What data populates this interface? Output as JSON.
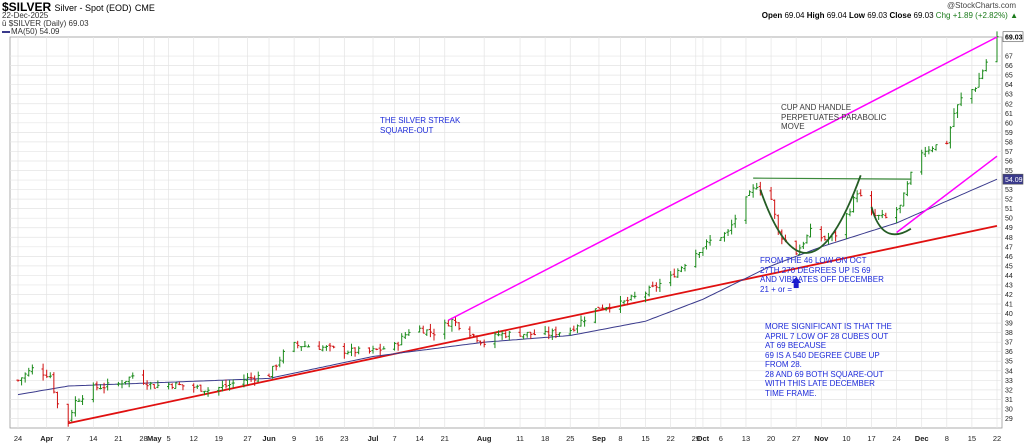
{
  "header": {
    "symbol": "$SILVER",
    "description": "Silver - Spot (EOD)",
    "exchange": "CME",
    "date": "22-Dec-2025",
    "legend_price": "$SILVER (Daily) 69.03",
    "legend_ma": "MA(50) 54.09",
    "credit": "@StockCharts.com",
    "ohlc": {
      "open_label": "Open",
      "open": "69.04",
      "high_label": "High",
      "high": "69.04",
      "low_label": "Low",
      "low": "69.03",
      "close_label": "Close",
      "close": "69.03",
      "change": "Chg +1.89 (+2.82%)",
      "change_marker": "▲"
    }
  },
  "annotations": {
    "streak": [
      "THE SILVER STREAK",
      "SQUARE-OUT"
    ],
    "cup": [
      "CUP AND HANDLE",
      "PERPETUATES PARABOLIC",
      "MOVE"
    ],
    "low": [
      "FROM THE  46 LOW ON OCT",
      "27TH 270 DEGREES UP IS 69",
      "AND VIBRATES OFF DECEMBER",
      "21 + or ="
    ],
    "significant": [
      "MORE SIGNIFICANT IS THAT THE",
      "APRIL 7 LOW OF 28 CUBES OUT",
      "AT 69 BECAUSE",
      "69 IS A 540 DEGREE CUBE UP",
      "FROM 28.",
      "28 AND 69 BOTH SQUARE-OUT",
      "WITH THIS LATE DECEMBER",
      "TIME FRAME."
    ]
  },
  "chart_data": {
    "type": "line",
    "subtype": "ohlc-bars",
    "title": "$SILVER Silver - Spot (EOD)",
    "grid": true,
    "price_axis": {
      "position": "right",
      "ylim": [
        28,
        69
      ],
      "ticks": [
        29,
        30,
        31,
        32,
        33,
        34,
        35,
        36,
        37,
        38,
        39,
        40,
        41,
        42,
        43,
        44,
        45,
        46,
        47,
        48,
        49,
        50,
        51,
        52,
        53,
        54,
        55,
        56,
        57,
        58,
        59,
        60,
        61,
        62,
        63,
        64,
        65,
        66,
        67
      ]
    },
    "date_axis": {
      "range": [
        "2025-03-24",
        "2025-12-22"
      ],
      "ticks": [
        {
          "label": "24",
          "date": "2025-03-24"
        },
        {
          "label": "Apr",
          "date": "2025-04-01",
          "month": true
        },
        {
          "label": "7",
          "date": "2025-04-07"
        },
        {
          "label": "14",
          "date": "2025-04-14"
        },
        {
          "label": "21",
          "date": "2025-04-21"
        },
        {
          "label": "28",
          "date": "2025-04-28"
        },
        {
          "label": "May",
          "date": "2025-05-01",
          "month": true
        },
        {
          "label": "5",
          "date": "2025-05-05"
        },
        {
          "label": "12",
          "date": "2025-05-12"
        },
        {
          "label": "19",
          "date": "2025-05-19"
        },
        {
          "label": "27",
          "date": "2025-05-27"
        },
        {
          "label": "Jun",
          "date": "2025-06-02",
          "month": true
        },
        {
          "label": "9",
          "date": "2025-06-09"
        },
        {
          "label": "16",
          "date": "2025-06-16"
        },
        {
          "label": "23",
          "date": "2025-06-23"
        },
        {
          "label": "Jul",
          "date": "2025-07-01",
          "month": true
        },
        {
          "label": "7",
          "date": "2025-07-07"
        },
        {
          "label": "14",
          "date": "2025-07-14"
        },
        {
          "label": "21",
          "date": "2025-07-21"
        },
        {
          "label": "Aug",
          "date": "2025-08-01",
          "month": true
        },
        {
          "label": "11",
          "date": "2025-08-11"
        },
        {
          "label": "18",
          "date": "2025-08-18"
        },
        {
          "label": "25",
          "date": "2025-08-25"
        },
        {
          "label": "Sep",
          "date": "2025-09-02",
          "month": true
        },
        {
          "label": "8",
          "date": "2025-09-08"
        },
        {
          "label": "15",
          "date": "2025-09-15"
        },
        {
          "label": "22",
          "date": "2025-09-22"
        },
        {
          "label": "29",
          "date": "2025-09-29"
        },
        {
          "label": "Oct",
          "date": "2025-10-01",
          "month": true
        },
        {
          "label": "6",
          "date": "2025-10-06"
        },
        {
          "label": "13",
          "date": "2025-10-13"
        },
        {
          "label": "20",
          "date": "2025-10-20"
        },
        {
          "label": "27",
          "date": "2025-10-27"
        },
        {
          "label": "Nov",
          "date": "2025-11-03",
          "month": true
        },
        {
          "label": "10",
          "date": "2025-11-10"
        },
        {
          "label": "17",
          "date": "2025-11-17"
        },
        {
          "label": "24",
          "date": "2025-11-24"
        },
        {
          "label": "Dec",
          "date": "2025-12-01",
          "month": true
        },
        {
          "label": "8",
          "date": "2025-12-08"
        },
        {
          "label": "15",
          "date": "2025-12-15"
        },
        {
          "label": "22",
          "date": "2025-12-22"
        }
      ]
    },
    "price_anchors": [
      [
        "2025-03-24",
        33.0
      ],
      [
        "2025-03-28",
        34.2
      ],
      [
        "2025-04-02",
        33.5
      ],
      [
        "2025-04-04",
        30.5
      ],
      [
        "2025-04-07",
        28.8
      ],
      [
        "2025-04-09",
        30.8
      ],
      [
        "2025-04-14",
        32.2
      ],
      [
        "2025-04-21",
        32.6
      ],
      [
        "2025-04-25",
        33.5
      ],
      [
        "2025-05-01",
        32.4
      ],
      [
        "2025-05-05",
        32.6
      ],
      [
        "2025-05-12",
        32.3
      ],
      [
        "2025-05-16",
        32.0
      ],
      [
        "2025-05-20",
        32.3
      ],
      [
        "2025-05-27",
        33.2
      ],
      [
        "2025-06-02",
        33.6
      ],
      [
        "2025-06-06",
        35.8
      ],
      [
        "2025-06-09",
        36.7
      ],
      [
        "2025-06-16",
        36.5
      ],
      [
        "2025-06-23",
        36.1
      ],
      [
        "2025-06-30",
        36.0
      ],
      [
        "2025-07-07",
        36.6
      ],
      [
        "2025-07-11",
        38.2
      ],
      [
        "2025-07-14",
        38.4
      ],
      [
        "2025-07-18",
        38.0
      ],
      [
        "2025-07-23",
        39.3
      ],
      [
        "2025-07-28",
        38.0
      ],
      [
        "2025-08-01",
        36.9
      ],
      [
        "2025-08-05",
        37.8
      ],
      [
        "2025-08-11",
        37.9
      ],
      [
        "2025-08-18",
        37.8
      ],
      [
        "2025-08-25",
        38.3
      ],
      [
        "2025-09-02",
        40.7
      ],
      [
        "2025-09-08",
        41.0
      ],
      [
        "2025-09-15",
        42.2
      ],
      [
        "2025-09-22",
        43.8
      ],
      [
        "2025-09-29",
        46.4
      ],
      [
        "2025-10-03",
        47.6
      ],
      [
        "2025-10-08",
        48.5
      ],
      [
        "2025-10-10",
        50.0
      ],
      [
        "2025-10-13",
        51.9
      ],
      [
        "2025-10-16",
        53.5
      ],
      [
        "2025-10-20",
        52.0
      ],
      [
        "2025-10-22",
        48.5
      ],
      [
        "2025-10-27",
        46.4
      ],
      [
        "2025-10-31",
        48.6
      ],
      [
        "2025-11-04",
        47.8
      ],
      [
        "2025-11-07",
        48.3
      ],
      [
        "2025-11-11",
        51.0
      ],
      [
        "2025-11-13",
        52.8
      ],
      [
        "2025-11-17",
        50.3
      ],
      [
        "2025-11-21",
        50.0
      ],
      [
        "2025-11-25",
        51.2
      ],
      [
        "2025-11-28",
        54.5
      ],
      [
        "2025-12-01",
        57.0
      ],
      [
        "2025-12-04",
        57.5
      ],
      [
        "2025-12-08",
        58.0
      ],
      [
        "2025-12-10",
        61.0
      ],
      [
        "2025-12-12",
        62.5
      ],
      [
        "2025-12-16",
        63.8
      ],
      [
        "2025-12-18",
        65.5
      ],
      [
        "2025-12-22",
        69.03
      ]
    ],
    "ma50_anchors": [
      [
        "2025-03-24",
        31.5
      ],
      [
        "2025-04-07",
        32.4
      ],
      [
        "2025-05-05",
        32.8
      ],
      [
        "2025-06-02",
        33.2
      ],
      [
        "2025-07-01",
        35.5
      ],
      [
        "2025-08-01",
        37.0
      ],
      [
        "2025-08-25",
        37.7
      ],
      [
        "2025-09-15",
        39.2
      ],
      [
        "2025-10-01",
        41.5
      ],
      [
        "2025-10-20",
        45.0
      ],
      [
        "2025-11-03",
        47.0
      ],
      [
        "2025-11-24",
        49.5
      ],
      [
        "2025-12-22",
        54.09
      ]
    ],
    "ohlc_last": {
      "open": 69.04,
      "high": 69.04,
      "low": 69.03,
      "close": 69.03
    },
    "price_label": "69.03",
    "ma_label": "54.09",
    "ma50_last": 54.09,
    "trendlines": [
      {
        "color": "#ff00ff",
        "points": [
          [
            "2025-07-22",
            39.3
          ],
          [
            "2025-12-22",
            69.0
          ]
        ]
      },
      {
        "color": "#ff00ff",
        "points": [
          [
            "2025-11-24",
            48.5
          ],
          [
            "2025-12-22",
            56.5
          ]
        ]
      },
      {
        "color": "#e01010",
        "points": [
          [
            "2025-04-07",
            28.5
          ],
          [
            "2025-12-22",
            49.2
          ]
        ]
      },
      {
        "color": "#3a8a3a",
        "points": [
          [
            "2025-10-15",
            54.2
          ],
          [
            "2025-11-28",
            54.1
          ]
        ]
      }
    ],
    "arrow": {
      "date": "2025-10-27",
      "price": 43.2,
      "color": "#1a1acc"
    }
  }
}
